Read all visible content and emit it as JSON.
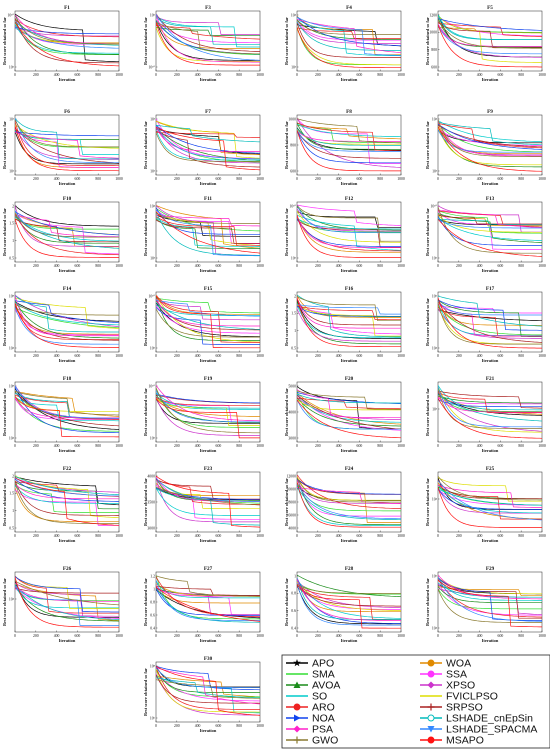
{
  "figure": {
    "xlabel": "Iteration",
    "ylabel": "Best score obtained so far"
  },
  "legend": [
    {
      "name": "APO",
      "color": "#000000",
      "marker": "star"
    },
    {
      "name": "WOA",
      "color": "#e08a00",
      "marker": "circle"
    },
    {
      "name": "SMA",
      "color": "#33dd33",
      "marker": "none"
    },
    {
      "name": "SSA",
      "color": "#ff33ff",
      "marker": "circle"
    },
    {
      "name": "AVOA",
      "color": "#1a8c1a",
      "marker": "triangle"
    },
    {
      "name": "XPSO",
      "color": "#cc33cc",
      "marker": "diamond"
    },
    {
      "name": "SO",
      "color": "#00cccc",
      "marker": "none"
    },
    {
      "name": "FVICLPSO",
      "color": "#dddd00",
      "marker": "none"
    },
    {
      "name": "ARO",
      "color": "#ee2222",
      "marker": "circle"
    },
    {
      "name": "SRPSO",
      "color": "#aa2222",
      "marker": "plus"
    },
    {
      "name": "NOA",
      "color": "#1144ee",
      "marker": "triangle-right"
    },
    {
      "name": "LSHADE_cnEpSin",
      "color": "#00bbbb",
      "marker": "circle-open"
    },
    {
      "name": "PSA",
      "color": "#ff22cc",
      "marker": "diamond"
    },
    {
      "name": "LSHADE_SPACMA",
      "color": "#3388ff",
      "marker": "triangle-down"
    },
    {
      "name": "GWO",
      "color": "#8a7a30",
      "marker": "plus"
    },
    {
      "name": "MSAPO",
      "color": "#ff1111",
      "marker": "circle"
    }
  ],
  "chart_data": {
    "type": "line",
    "xlim": [
      0,
      1000
    ],
    "x_ticks": [
      0,
      200,
      400,
      600,
      800,
      1000
    ],
    "series_names": [
      "APO",
      "WOA",
      "SMA",
      "SSA",
      "AVOA",
      "XPSO",
      "SO",
      "FVICLPSO",
      "ARO",
      "SRPSO",
      "NOA",
      "LSHADE_cnEpSin",
      "PSA",
      "LSHADE_SPACMA",
      "GWO",
      "MSAPO"
    ],
    "panels": [
      {
        "title": "F1",
        "y_ticks": [
          "10¹⁰",
          "10⁵"
        ]
      },
      {
        "title": "F3",
        "y_ticks": [
          "10⁵",
          "10¹⁰"
        ]
      },
      {
        "title": "F4",
        "y_ticks": [
          "10⁴",
          "10³"
        ]
      },
      {
        "title": "F5",
        "y_ticks": [
          "1200",
          "1000",
          "800",
          "600"
        ]
      },
      {
        "title": "F6",
        "y_ticks": [
          "10²",
          "10¹"
        ]
      },
      {
        "title": "F7",
        "y_ticks": [
          "10³",
          "10²"
        ]
      },
      {
        "title": "F8",
        "y_ticks": [
          "1000",
          "800",
          "600"
        ]
      },
      {
        "title": "F9",
        "y_ticks": [
          "10⁴",
          "10³"
        ]
      },
      {
        "title": "F10",
        "y_ticks": [
          "2",
          "1.5",
          "1",
          "0.5"
        ]
      },
      {
        "title": "F11",
        "y_ticks": [
          "10⁴",
          "10³"
        ]
      },
      {
        "title": "F12",
        "y_ticks": [
          "10¹⁰",
          "10⁵"
        ]
      },
      {
        "title": "F13",
        "y_ticks": [
          "10¹⁰",
          "10⁵"
        ]
      },
      {
        "title": "F14",
        "y_ticks": [
          "10⁸",
          "10⁴"
        ]
      },
      {
        "title": "F15",
        "y_ticks": [
          "10¹⁰",
          "10⁵"
        ]
      },
      {
        "title": "F16",
        "y_ticks": [
          "2",
          "1.5",
          "1",
          "0.5"
        ]
      },
      {
        "title": "F17",
        "y_ticks": [
          "10⁵",
          "10⁴"
        ]
      },
      {
        "title": "F18",
        "y_ticks": [
          "10⁸",
          "10⁴"
        ]
      },
      {
        "title": "F19",
        "y_ticks": [
          "10¹⁰",
          "10⁵"
        ]
      },
      {
        "title": "F20",
        "y_ticks": [
          "5000",
          "4000",
          "3000"
        ]
      },
      {
        "title": "F21",
        "y_ticks": [
          "10³"
        ]
      },
      {
        "title": "F22",
        "y_ticks": [
          "2",
          "1.5",
          "1",
          "0.5"
        ]
      },
      {
        "title": "F23",
        "y_ticks": [
          "4000",
          "3500",
          "3000"
        ]
      },
      {
        "title": "F24",
        "y_ticks": [
          "12000",
          "10000",
          "8000",
          "6000",
          "4000"
        ]
      },
      {
        "title": "F25",
        "y_ticks": [
          "10⁴"
        ]
      },
      {
        "title": "F26",
        "y_ticks": [
          "10⁴"
        ]
      },
      {
        "title": "F27",
        "y_ticks": [
          "1.2",
          "1",
          "0.8",
          "0.6",
          "0.4"
        ]
      },
      {
        "title": "F28",
        "y_ticks": [
          "1",
          "0.8",
          "0.6",
          "0.4"
        ]
      },
      {
        "title": "F29",
        "y_ticks": [
          "10⁵",
          "10⁴"
        ]
      },
      {
        "title": "F30",
        "y_ticks": [
          "10⁸",
          "10⁶"
        ]
      }
    ]
  }
}
